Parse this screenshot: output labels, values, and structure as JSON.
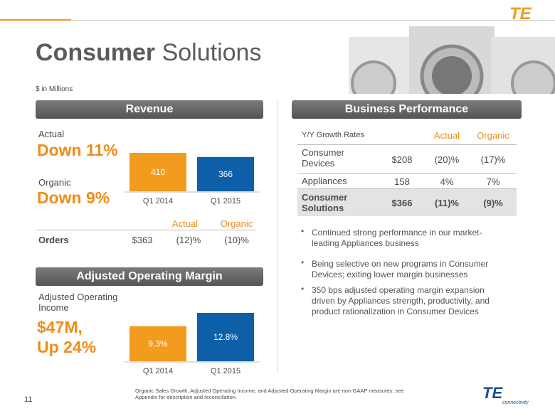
{
  "header": {
    "title_bold": "Consumer",
    "title_rest": "Solutions",
    "subtitle": "$ in Millions",
    "logo": "TE",
    "logo_sub": "connectivity"
  },
  "revenue": {
    "heading": "Revenue",
    "actual_label": "Actual",
    "actual_value": "Down 11%",
    "organic_label": "Organic",
    "organic_value": "Down 9%",
    "chart": {
      "type": "bar",
      "categories": [
        "Q1 2014",
        "Q1 2015"
      ],
      "values": [
        410,
        366
      ],
      "colors": [
        "#f39b1f",
        "#0d5fa8"
      ]
    },
    "orders": {
      "columns": [
        "Actual",
        "Organic"
      ],
      "row": [
        "Orders",
        "$363",
        "(12)%",
        "(10)%"
      ]
    }
  },
  "margin": {
    "heading": "Adjusted Operating Margin",
    "income_label": "Adjusted Operating Income",
    "income_lines": [
      "$47M,",
      "Up 24%"
    ],
    "chart": {
      "type": "bar",
      "categories": [
        "Q1 2014",
        "Q1 2015"
      ],
      "values": [
        9.3,
        12.8
      ],
      "value_labels": [
        "9.3%",
        "12.8%"
      ],
      "colors": [
        "#f39b1f",
        "#0d5fa8"
      ]
    }
  },
  "performance": {
    "heading": "Business Performance",
    "columns": [
      "Y/Y Growth Rates",
      "Actual",
      "Organic"
    ],
    "rows": [
      [
        "Consumer Devices",
        "$208",
        "(20)%",
        "(17)%"
      ],
      [
        "Appliances",
        "158",
        "4%",
        "7%"
      ],
      [
        "Consumer Solutions",
        "$366",
        "(11)%",
        "(9)%"
      ]
    ],
    "bullets": [
      "Continued strong performance in our market-leading Appliances business",
      "Being selective on new programs in Consumer Devices; exiting lower margin businesses",
      "350 bps adjusted operating margin expansion driven by Appliances strength, productivity, and product rationalization in Consumer Devices"
    ]
  },
  "footer": {
    "note": "Organic Sales Growth, Adjusted Operating Income, and Adjusted Operating Margin are non-GAAP measures; see Appendix for description and reconciliation.",
    "page": "11"
  }
}
